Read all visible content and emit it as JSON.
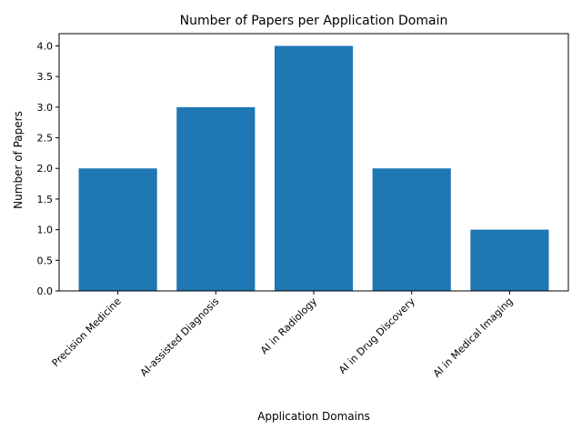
{
  "chart_data": {
    "type": "bar",
    "title": "Number of Papers per Application Domain",
    "xlabel": "Application Domains",
    "ylabel": "Number of Papers",
    "categories": [
      "Precision Medicine",
      "AI-assisted Diagnosis",
      "AI in Radiology",
      "AI in Drug Discovery",
      "AI in Medical Imaging"
    ],
    "values": [
      2,
      3,
      4,
      2,
      1
    ],
    "ylim": [
      0,
      4.2
    ],
    "yticks": [
      "0.0",
      "0.5",
      "1.0",
      "1.5",
      "2.0",
      "2.5",
      "3.0",
      "3.5",
      "4.0"
    ],
    "grid": false,
    "legend": "none",
    "bar_color": "#1f77b4"
  }
}
